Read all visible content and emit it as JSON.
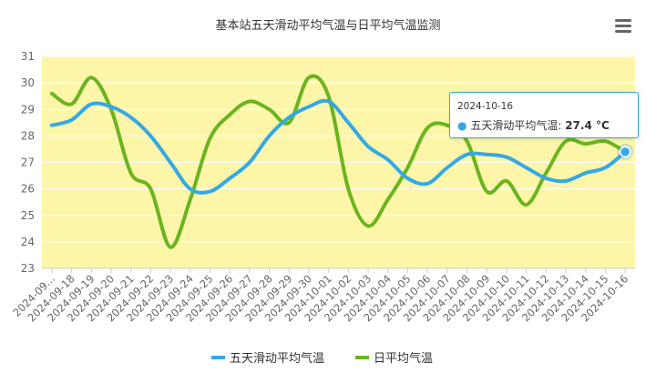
{
  "colors": {
    "plot_bg": "#fdf6a9",
    "series_1": "#35a8e6",
    "series_2": "#6bb41e",
    "grid": "#ffffff",
    "axis": "#cccccc"
  },
  "menu": {
    "icon": "hamburger-menu-icon"
  },
  "chart_data": {
    "type": "line",
    "title": "基本站五天滑动平均气温与日平均气温监测",
    "xlabel": "",
    "ylabel": "",
    "ylim": [
      23,
      31
    ],
    "yticks": [
      23,
      24,
      25,
      26,
      27,
      28,
      29,
      30,
      31
    ],
    "categories": [
      "2024-09...",
      "2024-09-18",
      "2024-09-19",
      "2024-09-20",
      "2024-09-21",
      "2024-09-22",
      "2024-09-23",
      "2024-09-24",
      "2024-09-25",
      "2024-09-26",
      "2024-09-27",
      "2024-09-28",
      "2024-09-29",
      "2024-09-30",
      "2024-10-01",
      "2024-10-02",
      "2024-10-03",
      "2024-10-04",
      "2024-10-05",
      "2024-10-06",
      "2024-10-07",
      "2024-10-08",
      "2024-10-09",
      "2024-10-10",
      "2024-10-11",
      "2024-10-12",
      "2024-10-13",
      "2024-10-14",
      "2024-10-15",
      "2024-10-16"
    ],
    "series": [
      {
        "name": "五天滑动平均气温",
        "values": [
          28.4,
          28.6,
          29.2,
          29.1,
          28.7,
          28.0,
          27.0,
          26.0,
          25.9,
          26.4,
          27.0,
          28.0,
          28.7,
          29.1,
          29.3,
          28.5,
          27.6,
          27.1,
          26.4,
          26.2,
          26.8,
          27.3,
          27.3,
          27.2,
          26.8,
          26.4,
          26.3,
          26.6,
          26.8,
          27.4
        ]
      },
      {
        "name": "日平均气温",
        "values": [
          29.6,
          29.2,
          30.2,
          29.0,
          26.6,
          26.0,
          23.8,
          25.6,
          27.9,
          28.8,
          29.3,
          29.0,
          28.5,
          30.2,
          29.5,
          26.0,
          24.6,
          25.6,
          26.8,
          28.3,
          28.4,
          27.8,
          25.9,
          26.3,
          25.4,
          26.6,
          27.8,
          27.7,
          27.8,
          27.4
        ]
      }
    ],
    "grid": true,
    "legend": "bottom-center"
  },
  "tooltip": {
    "date": "2024-10-16",
    "series_name": "五天滑动平均气温",
    "value": "27.4 °C"
  }
}
